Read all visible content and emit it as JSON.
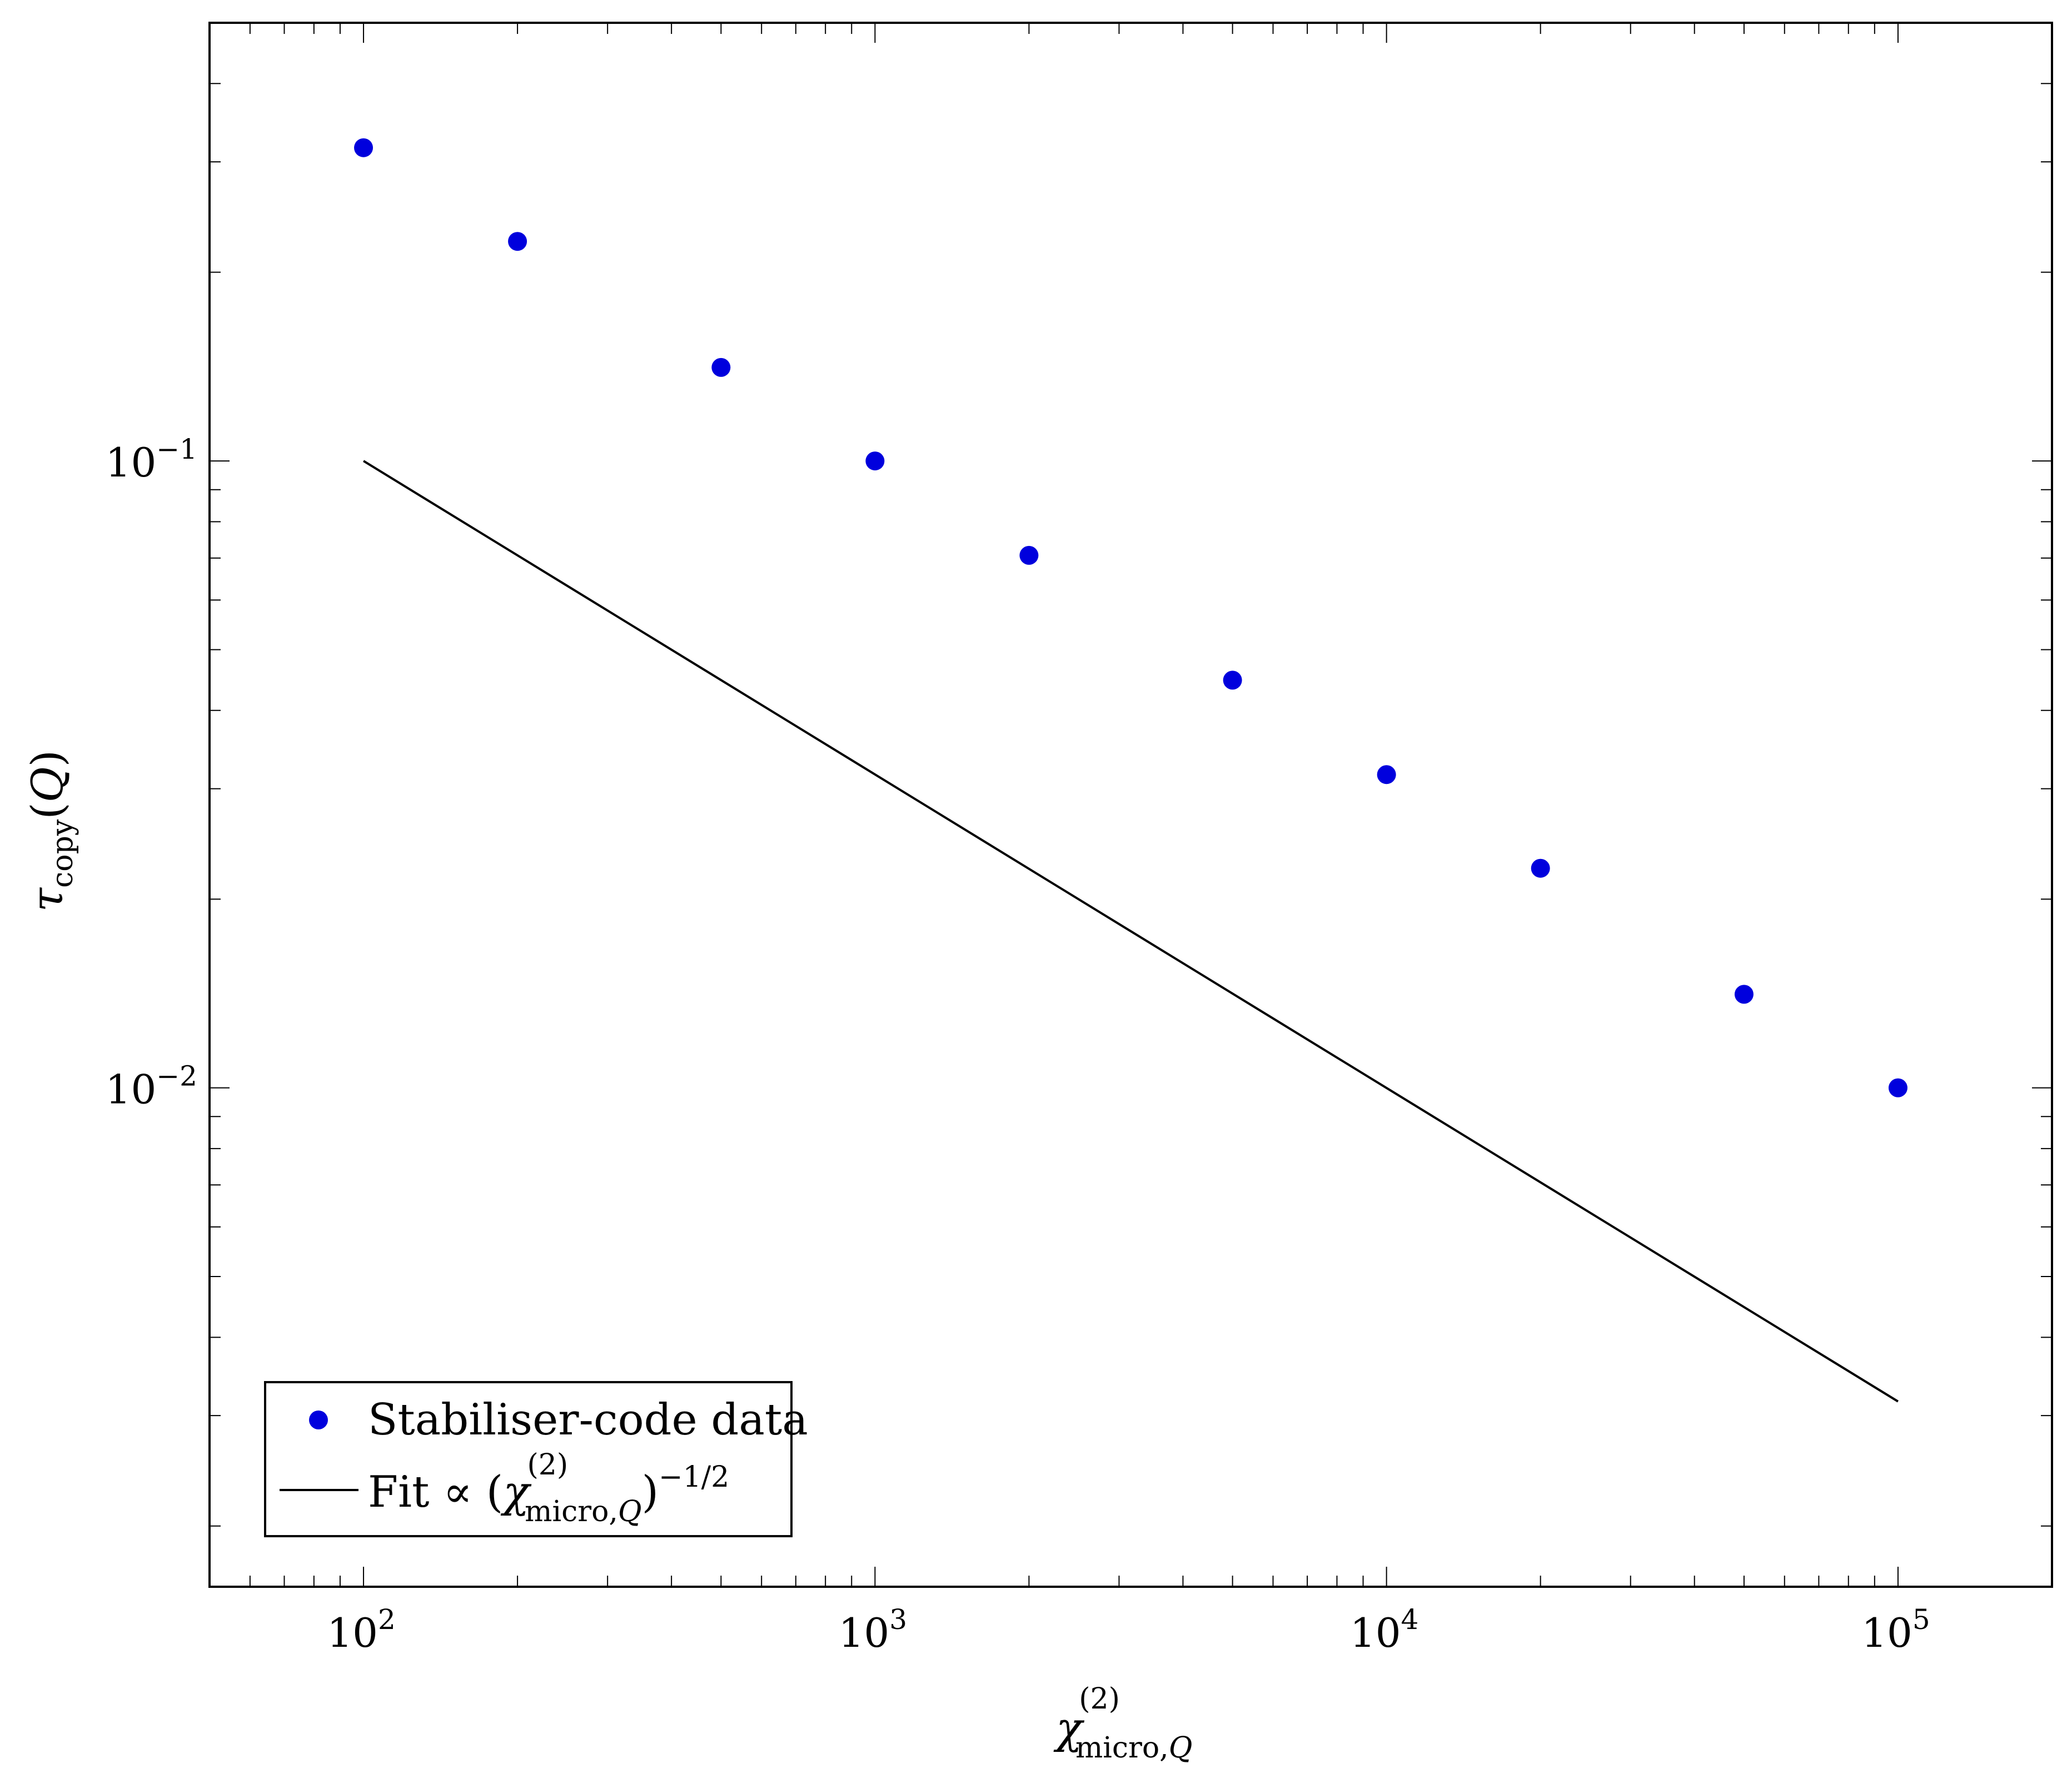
{
  "chart_data": {
    "type": "scatter",
    "x_scale": "log",
    "y_scale": "log",
    "xlim": [
      50,
      200000
    ],
    "ylim": [
      0.0016,
      0.5
    ],
    "grid": false,
    "legend_position": "bottom-left",
    "title": "",
    "xlabel": {
      "base": "χ",
      "superscript": "(2)",
      "subscript": "micro,",
      "subscript_italic": "Q"
    },
    "ylabel": {
      "base": "τ",
      "subscript": "copy",
      "suffix_open": "(",
      "suffix_italic": "Q",
      "suffix_close": ")"
    },
    "x_ticks": [
      {
        "value": 100,
        "base": "10",
        "exp": "2"
      },
      {
        "value": 1000,
        "base": "10",
        "exp": "3"
      },
      {
        "value": 10000,
        "base": "10",
        "exp": "4"
      },
      {
        "value": 100000,
        "base": "10",
        "exp": "5"
      }
    ],
    "y_ticks": [
      {
        "value": 0.1,
        "base": "10",
        "exp": "−1"
      },
      {
        "value": 0.01,
        "base": "10",
        "exp": "−2"
      }
    ],
    "series": [
      {
        "name": "Stabiliser-code data",
        "type": "scatter",
        "color": "#0000dd",
        "x": [
          100,
          200,
          500,
          1000,
          2000,
          5000,
          10000,
          20000,
          50000,
          100000
        ],
        "y": [
          0.316,
          0.224,
          0.141,
          0.1,
          0.0707,
          0.0447,
          0.0316,
          0.0224,
          0.0141,
          0.01
        ]
      },
      {
        "name": "fit",
        "type": "line",
        "color": "#000000",
        "x": [
          100,
          100000
        ],
        "y": [
          0.1,
          0.00316
        ]
      }
    ],
    "legend": {
      "entries": [
        {
          "kind": "marker",
          "label": "Stabiliser-code data"
        },
        {
          "kind": "line",
          "label_prefix": "Fit ∝ (",
          "label_base": "χ",
          "label_sup": "(2)",
          "label_sub": "micro,",
          "label_sub_italic": "Q",
          "label_close": ")",
          "label_exp": "−1/2"
        }
      ]
    }
  }
}
